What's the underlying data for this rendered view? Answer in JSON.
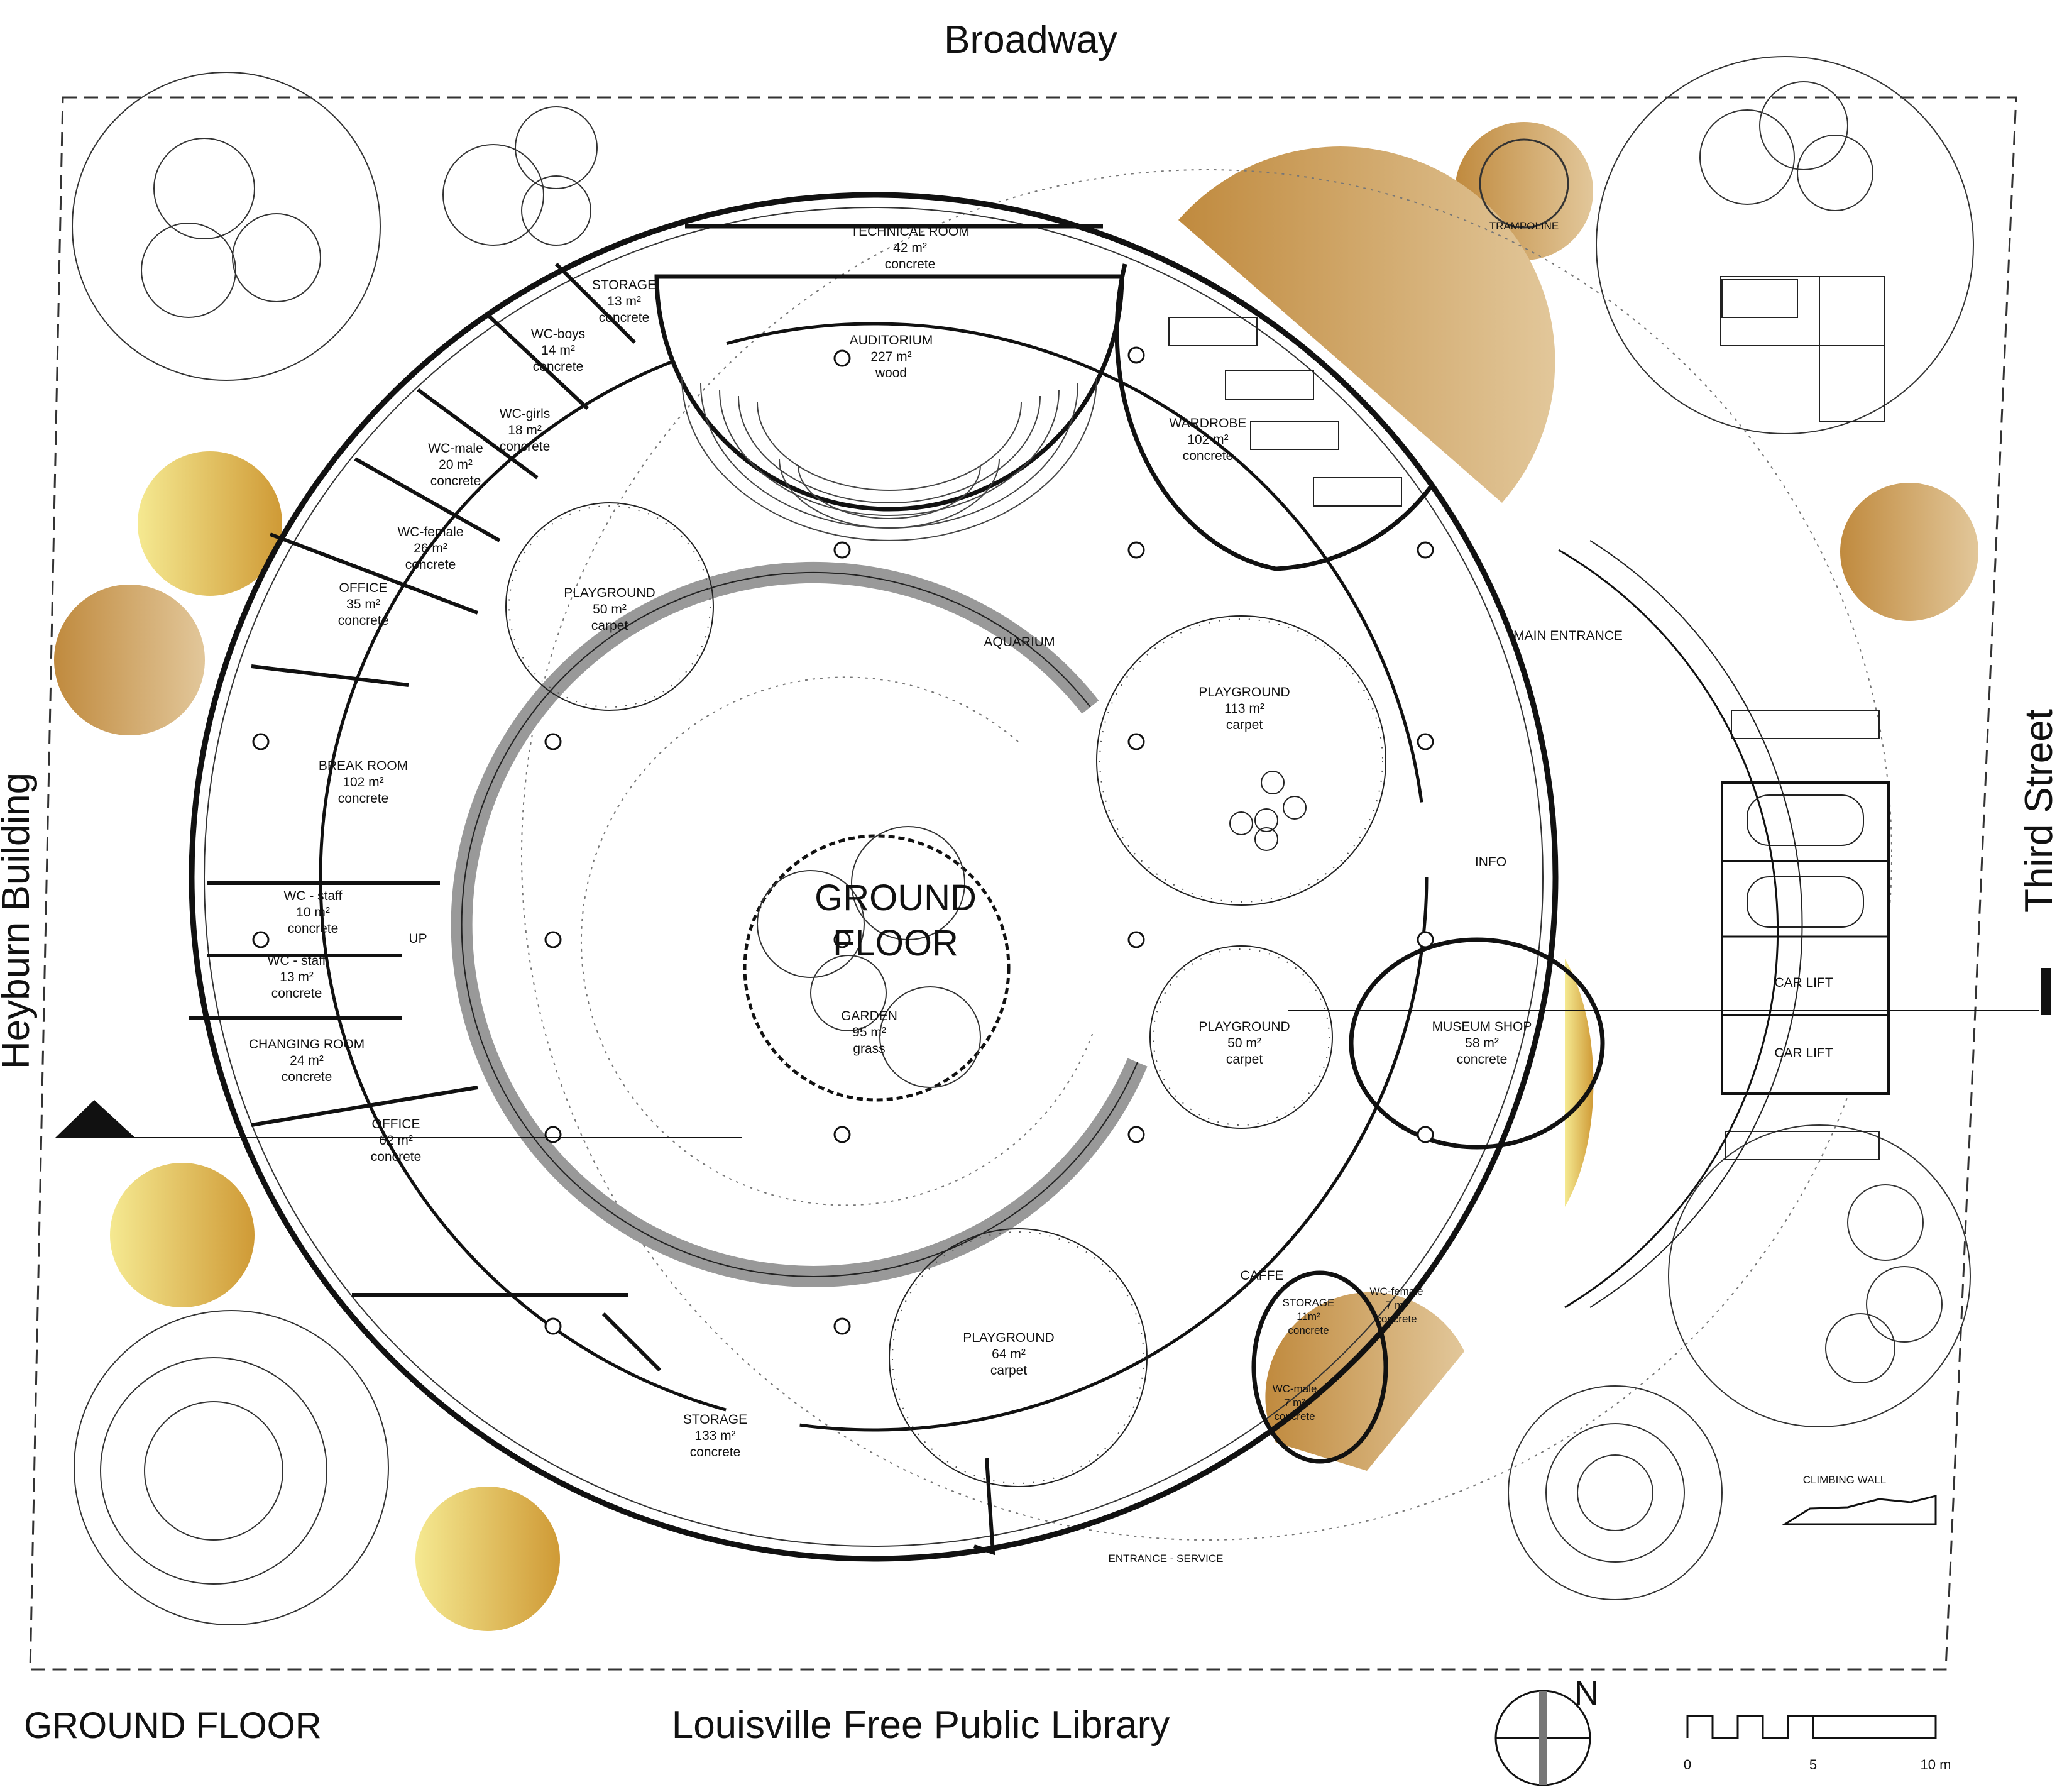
{
  "drawing": {
    "title": "GROUND FLOOR",
    "center_label_line1": "GROUND",
    "center_label_line2": "FLOOR",
    "north_label": "N"
  },
  "streets": {
    "north": "Broadway",
    "east": "Third Street",
    "west": "Heyburn Building",
    "south": "Louisville Free Public Library"
  },
  "scale_bar": {
    "labels": [
      "0",
      "5",
      "10 m"
    ]
  },
  "colors": {
    "accent_light": "#f3e48a",
    "accent_dark": "#cf9a3a",
    "line": "#111111"
  },
  "rooms": {
    "technical_room": {
      "name": "TECHNICAL ROOM",
      "area": "42 m²",
      "material": "concrete"
    },
    "storage_top": {
      "name": "STORAGE",
      "area": "13 m²",
      "material": "concrete"
    },
    "auditorium": {
      "name": "AUDITORIUM",
      "area": "227 m²",
      "material": "wood"
    },
    "wc_boys": {
      "name": "WC-boys",
      "area": "14 m²",
      "material": "concrete"
    },
    "wc_girls": {
      "name": "WC-girls",
      "area": "18 m²",
      "material": "concrete"
    },
    "wc_male": {
      "name": "WC-male",
      "area": "20 m²",
      "material": "concrete"
    },
    "wc_female": {
      "name": "WC-female",
      "area": "26 m²",
      "material": "concrete"
    },
    "office_1": {
      "name": "OFFICE",
      "area": "35 m²",
      "material": "concrete"
    },
    "break_room": {
      "name": "BREAK ROOM",
      "area": "102 m²",
      "material": "concrete"
    },
    "wc_staff_1": {
      "name": "WC - staff",
      "area": "10 m²",
      "material": "concrete"
    },
    "wc_staff_2": {
      "name": "WC - staff",
      "area": "13 m²",
      "material": "concrete"
    },
    "changing_room": {
      "name": "CHANGING ROOM",
      "area": "24 m²",
      "material": "concrete"
    },
    "office_2": {
      "name": "OFFICE",
      "area": "62 m²",
      "material": "concrete"
    },
    "storage_big": {
      "name": "STORAGE",
      "area": "133 m²",
      "material": "concrete"
    },
    "playground_1": {
      "name": "PLAYGROUND",
      "area": "50 m²",
      "material": "carpet"
    },
    "playground_2": {
      "name": "PLAYGROUND",
      "area": "113 m²",
      "material": "carpet"
    },
    "playground_3": {
      "name": "PLAYGROUND",
      "area": "50 m²",
      "material": "carpet"
    },
    "playground_4": {
      "name": "PLAYGROUND",
      "area": "64 m²",
      "material": "carpet"
    },
    "wardrobe": {
      "name": "WARDROBE",
      "area": "102 m²",
      "material": "concrete"
    },
    "museum_shop": {
      "name": "MUSEUM SHOP",
      "area": "58 m²",
      "material": "concrete"
    },
    "garden": {
      "name": "GARDEN",
      "area": "95 m²",
      "material": "grass"
    },
    "storage_small": {
      "name": "STORAGE",
      "area": "11m²",
      "material": "concrete"
    },
    "wc_female_small": {
      "name": "WC-female",
      "area": "7 m²",
      "material": "concrete"
    },
    "wc_male_small": {
      "name": "WC-male",
      "area": "7 m²",
      "material": "concrete"
    }
  },
  "labels": {
    "aquarium": "AQUARIUM",
    "main_entrance": "MAIN ENTRANCE",
    "info": "INFO",
    "caffe": "CAFFE",
    "entrance_service": "ENTRANCE - SERVICE",
    "trampoline": "TRAMPOLINE",
    "car_lift_1": "CAR LIFT",
    "car_lift_2": "CAR LIFT",
    "climbing_wall": "CLIMBING WALL",
    "up": "UP"
  }
}
